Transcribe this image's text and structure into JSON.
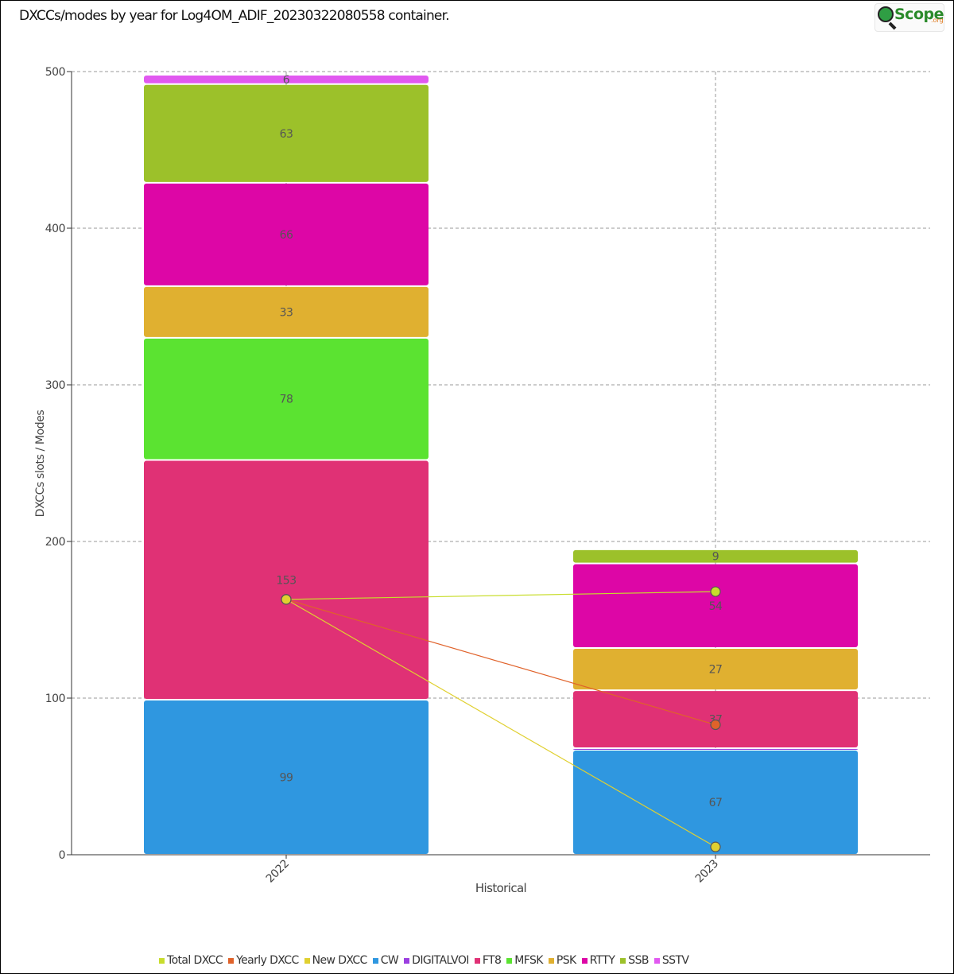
{
  "header": {
    "title": "DXCCs/modes by year for Log4OM_ADIF_20230322080558 container.",
    "logo_text": "Scope",
    "logo_suffix": ".org"
  },
  "colors": {
    "CW": "#2f97e0",
    "DIGITALVOI": "#9b3fe0",
    "FT8": "#e03175",
    "MFSK": "#5be331",
    "PSK": "#e0b030",
    "RTTY": "#dd06a6",
    "SSB": "#9cc12a",
    "SSTV": "#e159f0",
    "Total DXCC": "#c8dd2c",
    "Yearly DXCC": "#e0622a",
    "New DXCC": "#e0d030",
    "grid": "#999999",
    "label": "#555555"
  },
  "chart_data": {
    "type": "bar",
    "stacked": true,
    "xlabel": "Historical",
    "ylabel": "DXCCs slots / Modes",
    "ylim": [
      0,
      500
    ],
    "yticks": [
      0,
      100,
      200,
      300,
      400,
      500
    ],
    "grid": true,
    "categories": [
      "2022",
      "2023"
    ],
    "series": [
      {
        "name": "CW",
        "values": [
          99,
          67
        ]
      },
      {
        "name": "DIGITALVOI",
        "values": [
          0,
          1
        ]
      },
      {
        "name": "FT8",
        "values": [
          153,
          37
        ]
      },
      {
        "name": "MFSK",
        "values": [
          78,
          0
        ]
      },
      {
        "name": "PSK",
        "values": [
          33,
          27
        ]
      },
      {
        "name": "RTTY",
        "values": [
          66,
          54
        ]
      },
      {
        "name": "SSB",
        "values": [
          63,
          9
        ]
      },
      {
        "name": "SSTV",
        "values": [
          6,
          0
        ]
      }
    ],
    "lines": [
      {
        "name": "Total DXCC",
        "values": [
          163,
          168
        ]
      },
      {
        "name": "Yearly DXCC",
        "values": [
          163,
          83
        ]
      },
      {
        "name": "New DXCC",
        "values": [
          163,
          5
        ]
      }
    ],
    "legend": {
      "position": "bottom",
      "entries": [
        "Total DXCC",
        "Yearly DXCC",
        "New DXCC",
        "CW",
        "DIGITALVOI",
        "FT8",
        "MFSK",
        "PSK",
        "RTTY",
        "SSB",
        "SSTV"
      ]
    }
  }
}
